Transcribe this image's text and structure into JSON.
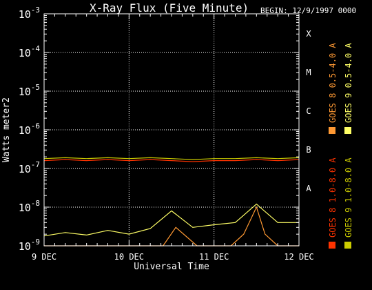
{
  "header": {
    "title": "X-Ray Flux (Five Minute)",
    "begin": "BEGIN: 12/9/1997 0000"
  },
  "chart_data": {
    "type": "line",
    "title": "X-Ray Flux (Five Minute)",
    "xlabel": "Universal Time",
    "ylabel": "Watts meter2",
    "x_ticks": [
      "9 DEC",
      "10 DEC",
      "11 DEC",
      "12 DEC"
    ],
    "x_range_days": [
      0,
      3
    ],
    "y_scale": "log",
    "y_range": [
      1e-09,
      0.001
    ],
    "y_tick_exponents": [
      -9,
      -8,
      -7,
      -6,
      -5,
      -4,
      -3
    ],
    "flare_classes": [
      {
        "label": "A",
        "value": 1e-08
      },
      {
        "label": "B",
        "value": 1e-07
      },
      {
        "label": "C",
        "value": 1e-06
      },
      {
        "label": "M",
        "value": 1e-05
      },
      {
        "label": "X",
        "value": 0.0001
      }
    ],
    "grid": "dotted",
    "legend": [
      "GOES 8 1.0-8.0 A",
      "GOES 8 0.5-4.0 A",
      "GOES 9 1.0-8.0 A",
      "GOES 9 0.5-4.0 A"
    ],
    "colors": {
      "goes8_long": "#ff3300",
      "goes8_short": "#ff9933",
      "goes9_long": "#cccc00",
      "goes9_short": "#ffff66"
    },
    "series": [
      {
        "name": "GOES 8 1.0-8.0 A",
        "x": [
          0,
          0.25,
          0.5,
          0.75,
          1.0,
          1.25,
          1.5,
          1.75,
          2.0,
          2.25,
          2.5,
          2.75,
          3.0
        ],
        "y": [
          1.6e-07,
          1.7e-07,
          1.6e-07,
          1.7e-07,
          1.6e-07,
          1.7e-07,
          1.6e-07,
          1.5e-07,
          1.6e-07,
          1.6e-07,
          1.7e-07,
          1.6e-07,
          1.7e-07
        ]
      },
      {
        "name": "GOES 9 1.0-8.0 A",
        "x": [
          0,
          0.25,
          0.5,
          0.75,
          1.0,
          1.25,
          1.5,
          1.75,
          2.0,
          2.25,
          2.5,
          2.75,
          3.0
        ],
        "y": [
          1.8e-07,
          1.9e-07,
          1.8e-07,
          1.9e-07,
          1.8e-07,
          1.9e-07,
          1.8e-07,
          1.7e-07,
          1.8e-07,
          1.8e-07,
          1.9e-07,
          1.8e-07,
          1.9e-07
        ]
      },
      {
        "name": "GOES 8 0.5-4.0 A",
        "x": [
          0,
          0.4,
          0.8,
          1.0,
          1.2,
          1.4,
          1.55,
          1.8,
          2.0,
          2.2,
          2.35,
          2.5,
          2.6,
          2.75,
          3.0
        ],
        "y": [
          1e-09,
          1e-09,
          1e-09,
          1e-09,
          1e-09,
          1e-09,
          3e-09,
          1e-09,
          1e-09,
          1e-09,
          2e-09,
          1e-08,
          2e-09,
          1e-09,
          1e-09
        ]
      },
      {
        "name": "GOES 9 0.5-4.0 A",
        "x": [
          0,
          0.25,
          0.5,
          0.75,
          1.0,
          1.25,
          1.5,
          1.75,
          2.0,
          2.25,
          2.5,
          2.75,
          3.0
        ],
        "y": [
          1.8e-09,
          2.2e-09,
          1.9e-09,
          2.5e-09,
          2e-09,
          2.8e-09,
          8e-09,
          3e-09,
          3.5e-09,
          4e-09,
          1.2e-08,
          4e-09,
          4e-09
        ]
      }
    ]
  }
}
